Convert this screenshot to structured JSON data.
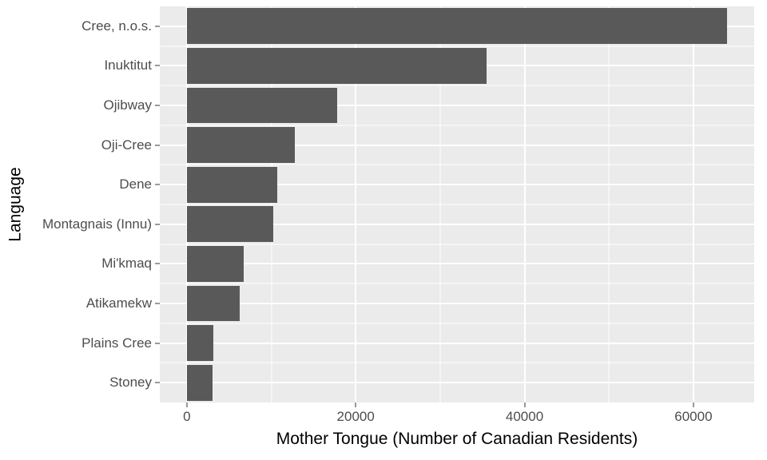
{
  "chart": {
    "type": "bar-horizontal",
    "background_color": "#ffffff",
    "panel_color": "#ebebeb",
    "grid_color": "#ffffff",
    "bar_color": "#595959",
    "tick_text_color": "#4d4d4d",
    "axis_title_color": "#000000",
    "tick_fontsize": 17,
    "axis_title_fontsize": 21,
    "xlim": [
      -3200,
      67200
    ],
    "xticks": [
      0,
      20000,
      40000,
      60000
    ],
    "xtick_labels": [
      "0",
      "20000",
      "40000",
      "60000"
    ],
    "xlabel": "Mother Tongue (Number of Canadian Residents)",
    "ylabel": "Language",
    "bar_rel_height": 0.9,
    "categories": [
      "Cree, n.o.s.",
      "Inuktitut",
      "Ojibway",
      "Oji-Cree",
      "Dene",
      "Montagnais (Innu)",
      "Mi'kmaq",
      "Atikamekw",
      "Plains Cree",
      "Stoney"
    ],
    "values": [
      64000,
      35500,
      17800,
      12800,
      10700,
      10200,
      6700,
      6300,
      3100,
      3000
    ]
  }
}
